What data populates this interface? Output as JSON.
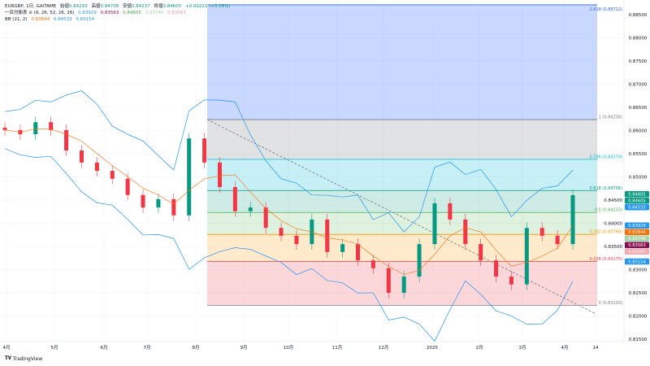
{
  "legend": {
    "symbol": "EURGBP, 1日, GAITAME",
    "open_label": "始値",
    "open": "0.84293",
    "high_label": "高値",
    "high": "0.84708",
    "low_label": "安値",
    "low": "0.84237",
    "close_label": "終値",
    "close": "0.84605",
    "change": "+0.00221 (+0.26%)",
    "ichimoku_label": "一目均衡表 ⊘ (9, 26, 52, 26, 26)",
    "ichimoku_values": [
      "0.83929",
      "0.83563",
      "0.84605",
      "0.83746",
      "0.83563"
    ],
    "bb_label": "BB (21, 2)",
    "bb_values": [
      "0.83844",
      "0.84533",
      "0.83154"
    ]
  },
  "footer": {
    "brand": "TradingView"
  },
  "colors": {
    "up": "#089981",
    "down": "#f23645",
    "bb": "#2196f3",
    "trend": "#787b86"
  },
  "chart_data": {
    "type": "candlestick",
    "symbol": "EURGBP",
    "ylim": [
      0.815,
      0.8885
    ],
    "y_ticks": [
      "0.88500",
      "0.88000",
      "0.87500",
      "0.87000",
      "0.86500",
      "0.86000",
      "0.85500",
      "0.85000",
      "0.84500",
      "0.84000",
      "0.83500",
      "0.83000",
      "0.82500",
      "0.82000",
      "0.81500"
    ],
    "x_ticks": [
      "4月",
      "5月",
      "6月",
      "7月",
      "8月",
      "9月",
      "10月",
      "11月",
      "12月",
      "2025",
      "2月",
      "3月",
      "4月",
      "14"
    ],
    "closes": [
      0.8601,
      0.8592,
      0.8618,
      0.8601,
      0.8557,
      0.8531,
      0.8513,
      0.8496,
      0.8461,
      0.8434,
      0.8452,
      0.8417,
      0.8583,
      0.8531,
      0.8478,
      0.8426,
      0.8434,
      0.839,
      0.8373,
      0.8355,
      0.8408,
      0.8338,
      0.8355,
      0.832,
      0.8303,
      0.825,
      0.8285,
      0.8355,
      0.8443,
      0.8408,
      0.8355,
      0.832,
      0.8285,
      0.8268,
      0.839,
      0.8373,
      0.8355,
      0.84605
    ],
    "fibonacci": [
      {
        "level": "1.618",
        "price": "0.88712",
        "color": "#2962ff"
      },
      {
        "level": "1",
        "price": "0.86236",
        "color": "#787b86"
      },
      {
        "level": "0.786",
        "price": "0.85379",
        "color": "#00bcd4"
      },
      {
        "level": "0.618",
        "price": "0.84706",
        "color": "#089981"
      },
      {
        "level": "0.5",
        "price": "0.84233",
        "color": "#4caf50"
      },
      {
        "level": "0.382",
        "price": "0.83760",
        "color": "#ff9800"
      },
      {
        "level": "0.236",
        "price": "0.83175",
        "color": "#f23645"
      },
      {
        "level": "0",
        "price": "0.82230",
        "color": "#787b86"
      }
    ],
    "price_badges": [
      {
        "value": "0.84605",
        "color": "#089981"
      },
      {
        "value": "0.84605",
        "color": "#089981"
      },
      {
        "value": "0.84533",
        "color": "#2196f3"
      },
      {
        "value": "0.83929",
        "color": "#2196f3"
      },
      {
        "value": "0.83844",
        "color": "#ff6d00"
      },
      {
        "value": "0.83746",
        "color": "#a5d6a7"
      },
      {
        "value": "0.83563",
        "color": "#880e4f"
      },
      {
        "value": "0.83563",
        "color": "#f7a9b0"
      },
      {
        "value": "0.83154",
        "color": "#2196f3"
      }
    ]
  }
}
